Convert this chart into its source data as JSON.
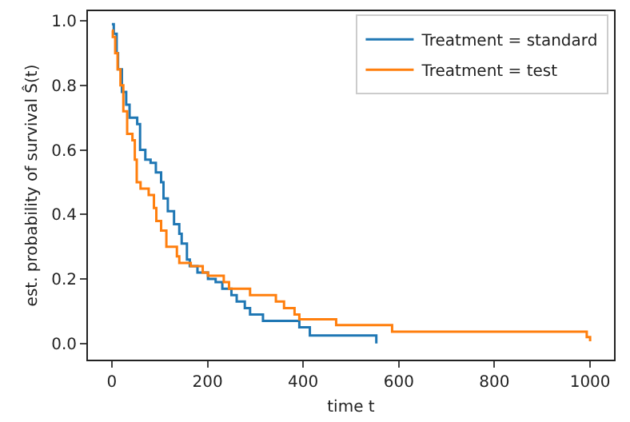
{
  "chart_data": {
    "type": "step",
    "xlabel": "time t",
    "ylabel": "est. probability of survival Ŝ(t)",
    "legend": "top right",
    "grid": false,
    "xlim": [
      -50,
      1050
    ],
    "xticks": [
      0,
      200,
      400,
      600,
      800,
      1000
    ],
    "ylim": [
      -0.05,
      1.03
    ],
    "yticks": [
      {
        "value": 0,
        "label": "0.0"
      },
      0.2,
      0.4,
      0.6,
      0.8,
      {
        "value": 1,
        "label": "1.0"
      }
    ],
    "series": [
      {
        "name": "Treatment = standard",
        "color": "#1f77b4",
        "x": [
          0,
          4,
          10,
          13,
          21,
          30,
          37,
          53,
          59,
          70,
          81,
          92,
          103,
          108,
          117,
          130,
          141,
          146,
          157,
          163,
          179,
          201,
          217,
          231,
          250,
          261,
          278,
          289,
          316,
          392,
          414,
          553
        ],
        "values": [
          0.99,
          0.96,
          0.9,
          0.85,
          0.78,
          0.74,
          0.7,
          0.68,
          0.6,
          0.57,
          0.56,
          0.53,
          0.5,
          0.45,
          0.41,
          0.37,
          0.34,
          0.31,
          0.26,
          0.24,
          0.22,
          0.2,
          0.19,
          0.17,
          0.15,
          0.13,
          0.11,
          0.09,
          0.07,
          0.05,
          0.025,
          0.0
        ]
      },
      {
        "name": "Treatment = test",
        "color": "#ff7f0e",
        "x": [
          0,
          2,
          7,
          12,
          18,
          24,
          32,
          43,
          48,
          52,
          60,
          77,
          88,
          93,
          103,
          114,
          136,
          141,
          165,
          190,
          201,
          234,
          245,
          289,
          343,
          360,
          382,
          392,
          469,
          586,
          993,
          1000
        ],
        "values": [
          0.97,
          0.95,
          0.9,
          0.85,
          0.8,
          0.72,
          0.65,
          0.63,
          0.57,
          0.5,
          0.48,
          0.46,
          0.42,
          0.38,
          0.35,
          0.3,
          0.27,
          0.25,
          0.24,
          0.22,
          0.21,
          0.19,
          0.17,
          0.15,
          0.13,
          0.11,
          0.09,
          0.075,
          0.057,
          0.037,
          0.02,
          0.007
        ]
      }
    ]
  }
}
